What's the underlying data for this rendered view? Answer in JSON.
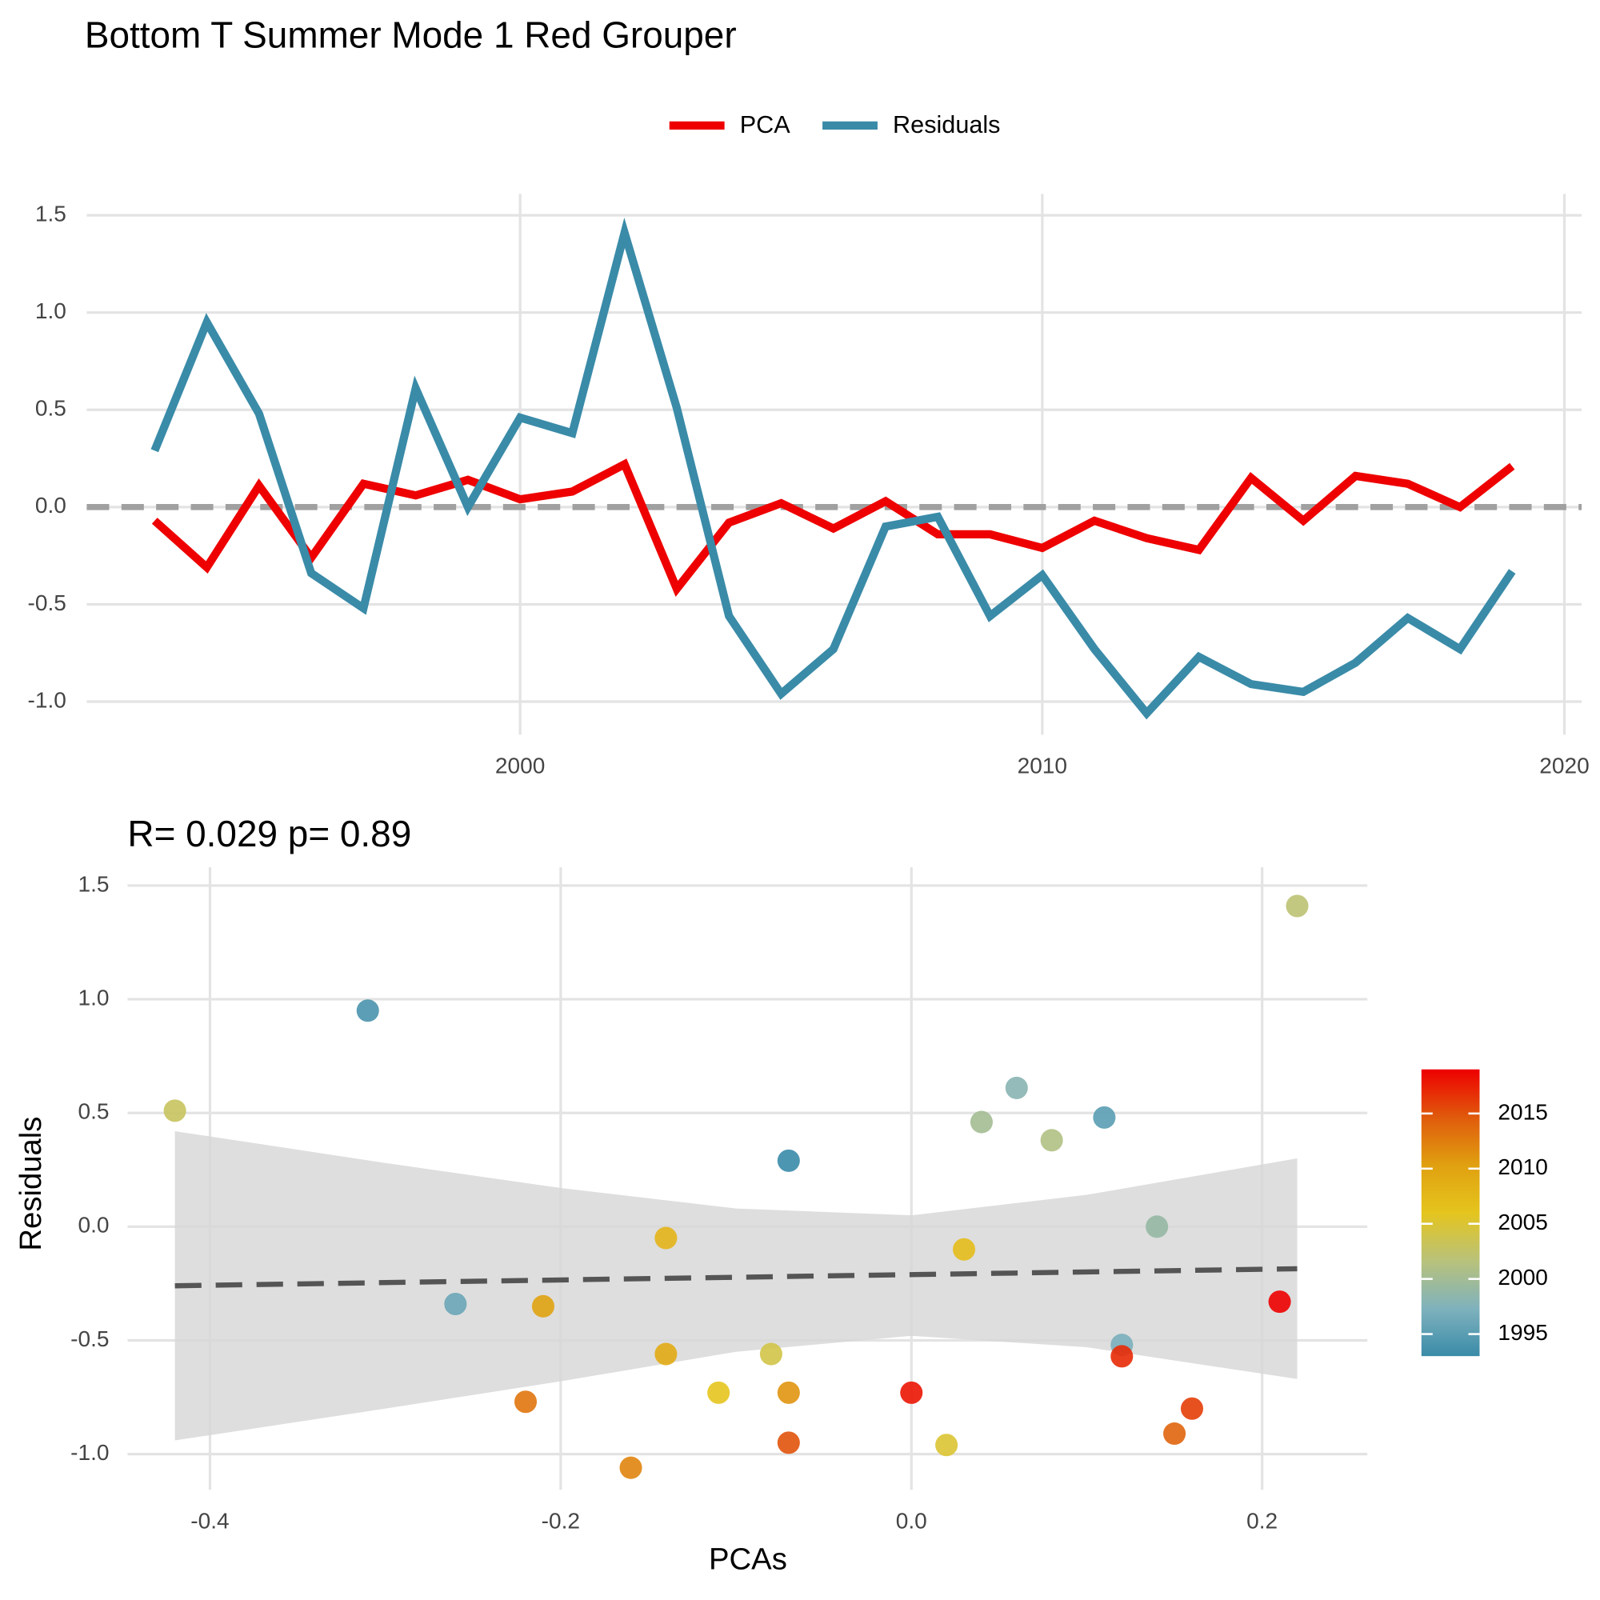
{
  "chart_data": [
    {
      "type": "line",
      "title": "Bottom T Summer Mode 1 Red Grouper",
      "x": [
        1993,
        1994,
        1995,
        1996,
        1997,
        1998,
        1999,
        2000,
        2001,
        2002,
        2003,
        2004,
        2005,
        2006,
        2007,
        2008,
        2009,
        2010,
        2011,
        2012,
        2013,
        2014,
        2015,
        2016,
        2017,
        2018,
        2019
      ],
      "series": [
        {
          "name": "PCA",
          "color": "#ee0000",
          "values": [
            -0.07,
            -0.31,
            0.11,
            -0.26,
            0.12,
            0.06,
            0.14,
            0.04,
            0.08,
            0.22,
            -0.42,
            -0.08,
            0.02,
            -0.11,
            0.03,
            -0.14,
            -0.14,
            -0.21,
            -0.07,
            -0.16,
            -0.22,
            0.15,
            -0.07,
            0.16,
            0.12,
            0.0,
            0.21
          ]
        },
        {
          "name": "Residuals",
          "color": "#3a8ba8",
          "values": [
            0.29,
            0.95,
            0.48,
            -0.34,
            -0.52,
            0.61,
            0.0,
            0.46,
            0.38,
            1.41,
            0.51,
            -0.56,
            -0.96,
            -0.73,
            -0.1,
            -0.05,
            -0.56,
            -0.35,
            -0.73,
            -1.06,
            -0.77,
            -0.91,
            -0.95,
            -0.8,
            -0.57,
            -0.73,
            -0.33
          ]
        }
      ],
      "xlim": [
        1991.7,
        2020.33
      ],
      "xticks": [
        2000,
        2010,
        2020
      ],
      "ylim": [
        -1.17,
        1.61
      ],
      "yticks": [
        {
          "value": -1,
          "label": "-1.0"
        },
        {
          "value": -0.5,
          "label": "-0.5"
        },
        {
          "value": 0,
          "label": "0.0"
        },
        {
          "value": 0.5,
          "label": "0.5"
        },
        {
          "value": 1,
          "label": "1.0"
        },
        {
          "value": 1.5,
          "label": "1.5"
        }
      ],
      "hline": 0,
      "grid": true,
      "legend": "top"
    },
    {
      "type": "scatter",
      "title": "R= 0.029  p= 0.89",
      "xlabel": "PCAs",
      "ylabel": "Residuals",
      "xlim": [
        -0.447,
        0.26
      ],
      "xticks": [
        -0.4,
        -0.2,
        {
          "value": 0,
          "label": "0.0"
        },
        0.2
      ],
      "ylim": [
        -1.157,
        1.58
      ],
      "yticks": [
        {
          "value": -1,
          "label": "-1.0"
        },
        {
          "value": -0.5,
          "label": "-0.5"
        },
        {
          "value": 0,
          "label": "0.0"
        },
        {
          "value": 0.5,
          "label": "0.5"
        },
        {
          "value": 1,
          "label": "1.0"
        },
        {
          "value": 1.5,
          "label": "1.5"
        }
      ],
      "fit": {
        "x": [
          -0.42,
          0.22
        ],
        "y": [
          -0.26,
          -0.185
        ]
      },
      "band": {
        "x": [
          -0.42,
          -0.3,
          -0.2,
          -0.1,
          0,
          0.1,
          0.22
        ],
        "upper": [
          0.42,
          0.28,
          0.17,
          0.08,
          0.05,
          0.14,
          0.3
        ],
        "lower": [
          -0.94,
          -0.8,
          -0.68,
          -0.55,
          -0.48,
          -0.53,
          -0.67
        ]
      },
      "colorbar": {
        "lim": [
          1993,
          2019
        ],
        "ticks": [
          1995,
          2000,
          2005,
          2010,
          2015
        ],
        "colors": [
          "#3a8ba8",
          "#7fb2bd",
          "#b9c27a",
          "#e5c51e",
          "#e0a010",
          "#e05a0c",
          "#ee0000"
        ]
      },
      "grid": true
    }
  ]
}
